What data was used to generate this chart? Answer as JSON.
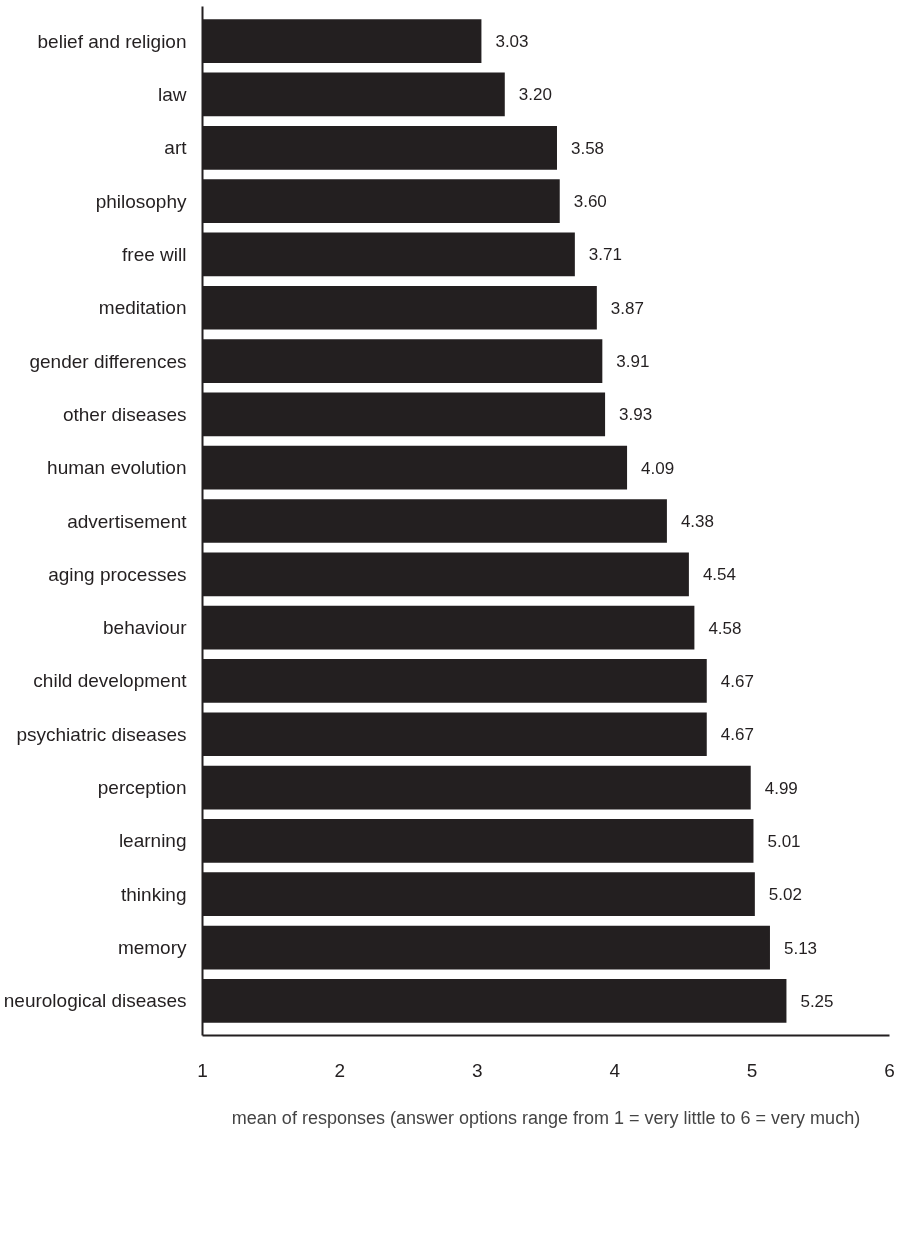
{
  "chart_data": {
    "type": "bar",
    "orientation": "horizontal",
    "xlabel": "mean of responses (answer options range from 1 = very little to 6 = very much)",
    "categories": [
      "belief and religion",
      "law",
      "art",
      "philosophy",
      "free will",
      "meditation",
      "gender differences",
      "other diseases",
      "human evolution",
      "advertisement",
      "aging processes",
      "behaviour",
      "child development",
      "psychiatric diseases",
      "perception",
      "learning",
      "thinking",
      "memory",
      "neurological diseases"
    ],
    "values": [
      3.03,
      3.2,
      3.58,
      3.6,
      3.71,
      3.87,
      3.91,
      3.93,
      4.09,
      4.38,
      4.54,
      4.58,
      4.67,
      4.67,
      4.99,
      5.01,
      5.02,
      5.13,
      5.25
    ],
    "value_labels": [
      "3.03",
      "3.20",
      "3.58",
      "3.60",
      "3.71",
      "3.87",
      "3.91",
      "3.93",
      "4.09",
      "4.38",
      "4.54",
      "4.58",
      "4.67",
      "4.67",
      "4.99",
      "5.01",
      "5.02",
      "5.13",
      "5.25"
    ],
    "color": "#231f20",
    "xlim": [
      1,
      6
    ],
    "xticks": [
      1,
      2,
      3,
      4,
      5,
      6
    ],
    "grid": false
  }
}
